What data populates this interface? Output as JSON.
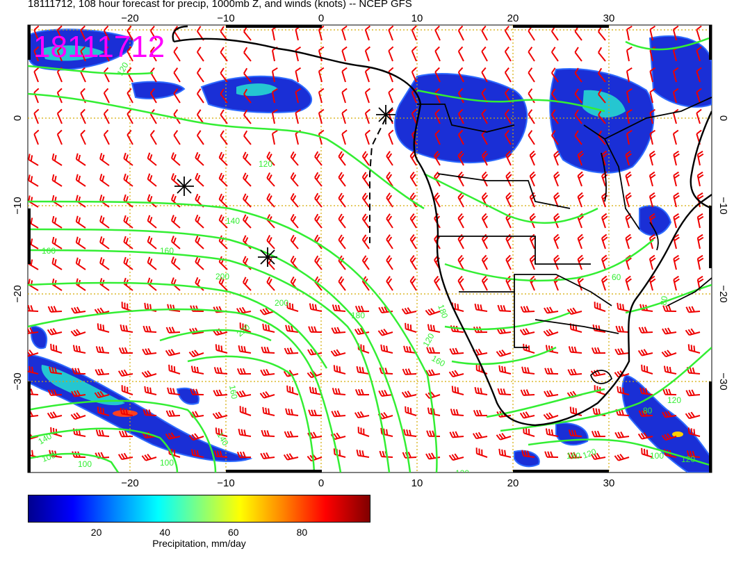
{
  "title": "18111712, 108 hour forecast for precip, 1000mb Z, and winds (knots) -- NCEP GFS",
  "date_stamp": "18111712",
  "map": {
    "lon_ticks": [
      "−20",
      "−10",
      "0",
      "10",
      "20",
      "30"
    ],
    "lat_ticks": [
      "0",
      "−10",
      "−20",
      "−30"
    ],
    "contour_labels": [
      "120",
      "120",
      "140",
      "160",
      "160",
      "180",
      "200",
      "200",
      "220",
      "180",
      "120",
      "160",
      "140",
      "100",
      "100",
      "160",
      "140",
      "100",
      "60",
      "80",
      "80",
      "120",
      "120",
      "120",
      "120",
      "160",
      "100"
    ],
    "colors": {
      "contour": "#33ee33",
      "wind_barb": "#ee0000",
      "grid": "#d4aa00",
      "coast": "#000000",
      "date_stamp": "#ff00ff"
    }
  },
  "colorbar": {
    "ticks": [
      "20",
      "40",
      "60",
      "80"
    ],
    "label": "Precipitation, mm/day",
    "range": [
      0,
      100
    ]
  }
}
